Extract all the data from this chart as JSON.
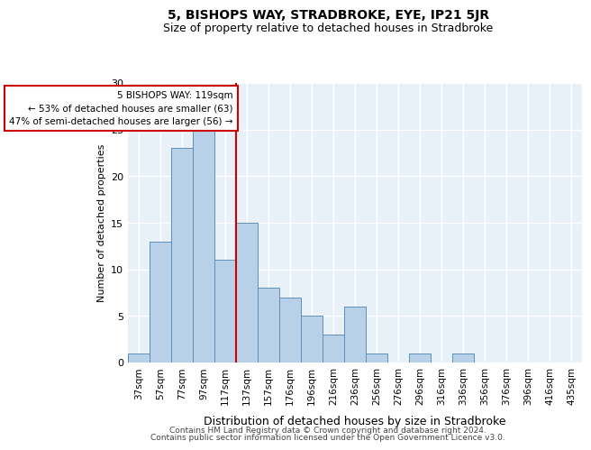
{
  "title": "5, BISHOPS WAY, STRADBROKE, EYE, IP21 5JR",
  "subtitle": "Size of property relative to detached houses in Stradbroke",
  "xlabel": "Distribution of detached houses by size in Stradbroke",
  "ylabel": "Number of detached properties",
  "bar_color": "#b8d0e8",
  "bar_edge_color": "#6090b8",
  "background_color": "#e8f0f8",
  "grid_color": "#ffffff",
  "annotation_box_color": "#cc0000",
  "property_line_color": "#cc0000",
  "categories": [
    "37sqm",
    "57sqm",
    "77sqm",
    "97sqm",
    "117sqm",
    "137sqm",
    "157sqm",
    "176sqm",
    "196sqm",
    "216sqm",
    "236sqm",
    "256sqm",
    "276sqm",
    "296sqm",
    "316sqm",
    "336sqm",
    "356sqm",
    "376sqm",
    "396sqm",
    "416sqm",
    "435sqm"
  ],
  "values": [
    1,
    13,
    23,
    25,
    11,
    15,
    8,
    7,
    5,
    3,
    6,
    1,
    0,
    1,
    0,
    1,
    0,
    0,
    0,
    0,
    0
  ],
  "property_line_bin_index": 4,
  "annotation_text_line1": "5 BISHOPS WAY: 119sqm",
  "annotation_text_line2": "← 53% of detached houses are smaller (63)",
  "annotation_text_line3": "47% of semi-detached houses are larger (56) →",
  "ylim": [
    0,
    30
  ],
  "yticks": [
    0,
    5,
    10,
    15,
    20,
    25,
    30
  ],
  "footer_line1": "Contains HM Land Registry data © Crown copyright and database right 2024.",
  "footer_line2": "Contains public sector information licensed under the Open Government Licence v3.0."
}
